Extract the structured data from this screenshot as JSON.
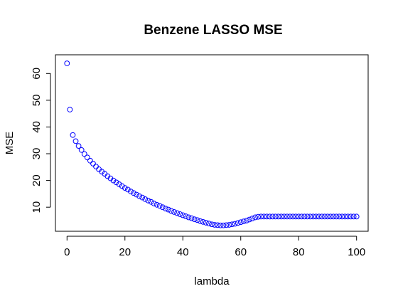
{
  "chart_data": {
    "type": "scatter",
    "title": "Benzene LASSO MSE",
    "xlabel": "lambda",
    "ylabel": "MSE",
    "xlim": [
      -4,
      104
    ],
    "ylim": [
      1,
      67
    ],
    "xticks": [
      0,
      20,
      40,
      60,
      80,
      100
    ],
    "yticks": [
      10,
      20,
      30,
      40,
      50,
      60
    ],
    "grid": false,
    "legend": "none",
    "point_color": "#0000ff",
    "marker": "open-circle",
    "x": [
      0,
      1,
      2,
      3,
      4,
      5,
      6,
      7,
      8,
      9,
      10,
      11,
      12,
      13,
      14,
      15,
      16,
      17,
      18,
      19,
      20,
      21,
      22,
      23,
      24,
      25,
      26,
      27,
      28,
      29,
      30,
      31,
      32,
      33,
      34,
      35,
      36,
      37,
      38,
      39,
      40,
      41,
      42,
      43,
      44,
      45,
      46,
      47,
      48,
      49,
      50,
      51,
      52,
      53,
      54,
      55,
      56,
      57,
      58,
      59,
      60,
      61,
      62,
      63,
      64,
      65,
      66,
      67,
      68,
      69,
      70,
      71,
      72,
      73,
      74,
      75,
      76,
      77,
      78,
      79,
      80,
      81,
      82,
      83,
      84,
      85,
      86,
      87,
      88,
      89,
      90,
      91,
      92,
      93,
      94,
      95,
      96,
      97,
      98,
      99,
      100
    ],
    "y": [
      63.8,
      46.5,
      37.0,
      34.7,
      32.9,
      31.4,
      29.9,
      28.6,
      27.4,
      26.3,
      25.2,
      24.2,
      23.3,
      22.5,
      21.6,
      20.8,
      20.0,
      19.3,
      18.6,
      17.9,
      17.2,
      16.6,
      15.9,
      15.3,
      14.7,
      14.1,
      13.6,
      13.0,
      12.5,
      12.0,
      11.4,
      10.9,
      10.5,
      10.0,
      9.5,
      9.1,
      8.6,
      8.2,
      7.8,
      7.4,
      7.0,
      6.6,
      6.2,
      5.9,
      5.5,
      5.2,
      4.8,
      4.5,
      4.2,
      3.9,
      3.6,
      3.4,
      3.3,
      3.2,
      3.2,
      3.3,
      3.4,
      3.6,
      3.8,
      4.1,
      4.4,
      4.7,
      5.0,
      5.4,
      5.8,
      6.2,
      6.4,
      6.5,
      6.5,
      6.5,
      6.5,
      6.5,
      6.5,
      6.5,
      6.5,
      6.5,
      6.5,
      6.5,
      6.5,
      6.5,
      6.5,
      6.5,
      6.5,
      6.5,
      6.5,
      6.5,
      6.5,
      6.5,
      6.5,
      6.5,
      6.5,
      6.5,
      6.5,
      6.5,
      6.5,
      6.5,
      6.5,
      6.5,
      6.5,
      6.5,
      6.5
    ]
  }
}
